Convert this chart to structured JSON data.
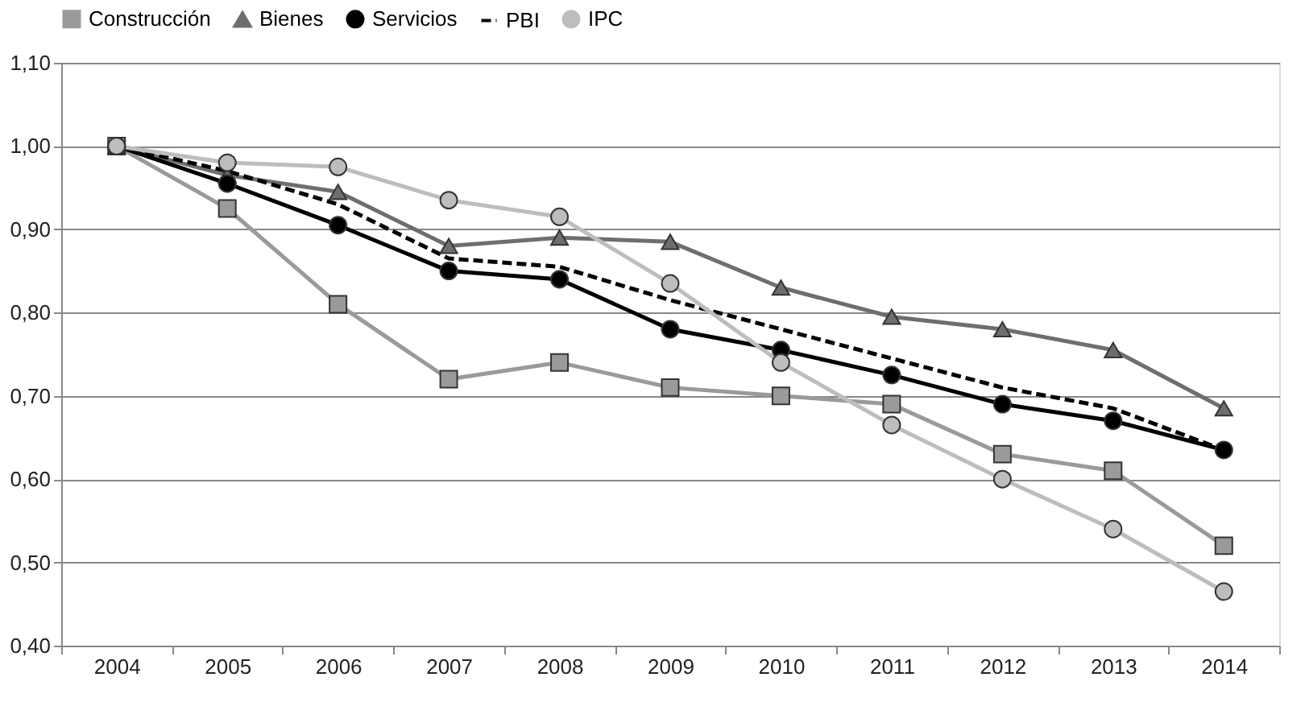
{
  "chart_data": {
    "type": "line",
    "categories": [
      "2004",
      "2005",
      "2006",
      "2007",
      "2008",
      "2009",
      "2010",
      "2011",
      "2012",
      "2013",
      "2014"
    ],
    "series": [
      {
        "name": "Construcción",
        "color": "#9a9a9a",
        "marker": "square",
        "line_style": "solid",
        "values": [
          1.0,
          0.925,
          0.81,
          0.72,
          0.74,
          0.71,
          0.7,
          0.69,
          0.63,
          0.61,
          0.52
        ]
      },
      {
        "name": "Bienes",
        "color": "#6e6e6e",
        "marker": "triangle",
        "line_style": "solid",
        "values": [
          1.0,
          0.965,
          0.945,
          0.88,
          0.89,
          0.885,
          0.83,
          0.795,
          0.78,
          0.755,
          0.685
        ]
      },
      {
        "name": "Servicios",
        "color": "#000000",
        "marker": "circle",
        "line_style": "solid",
        "values": [
          1.0,
          0.955,
          0.905,
          0.85,
          0.84,
          0.78,
          0.755,
          0.725,
          0.69,
          0.67,
          0.635
        ]
      },
      {
        "name": "PBI",
        "color": "#000000",
        "marker": "none",
        "line_style": "dashed",
        "values": [
          1.0,
          0.97,
          0.93,
          0.865,
          0.855,
          0.815,
          0.78,
          0.745,
          0.71,
          0.685,
          0.635
        ]
      },
      {
        "name": "IPC",
        "color": "#bdbdbd",
        "marker": "circle",
        "line_style": "solid",
        "values": [
          1.0,
          0.98,
          0.975,
          0.935,
          0.915,
          0.835,
          0.74,
          0.665,
          0.6,
          0.54,
          0.465
        ]
      }
    ],
    "ylim": [
      0.4,
      1.1
    ],
    "yticks": [
      {
        "value": 0.4,
        "label": "0,40"
      },
      {
        "value": 0.5,
        "label": "0,50"
      },
      {
        "value": 0.6,
        "label": "0,60"
      },
      {
        "value": 0.7,
        "label": "0,70"
      },
      {
        "value": 0.8,
        "label": "0,80"
      },
      {
        "value": 0.9,
        "label": "0,90"
      },
      {
        "value": 1.0,
        "label": "1,00"
      },
      {
        "value": 1.1,
        "label": "1,10"
      }
    ],
    "grid": "y",
    "legend": "top"
  }
}
